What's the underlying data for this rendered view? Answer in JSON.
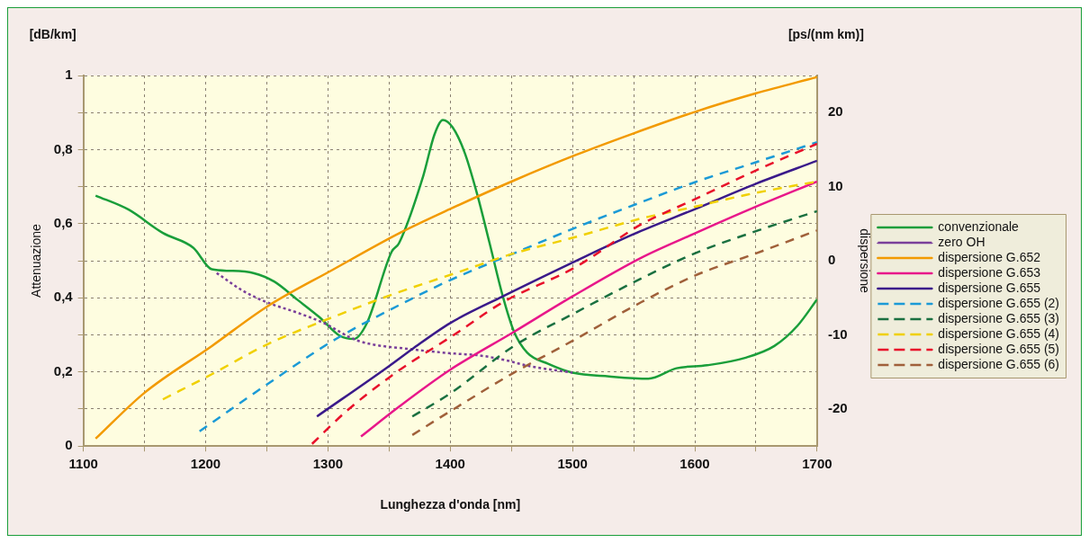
{
  "chart_data": {
    "type": "line",
    "xlabel": "Lunghezza d'onda [nm]",
    "ylabel": "Attenuazione",
    "y2label": "dispersione",
    "annotations": [
      "[dB/km]",
      "[ps/(nm km)]"
    ],
    "xlim": [
      1100,
      1700
    ],
    "xticks": [
      1100,
      {
        "value": 1150,
        "label": null
      },
      1200,
      {
        "value": 1250,
        "label": null
      },
      1300,
      {
        "value": 1350,
        "label": null
      },
      1400,
      {
        "value": 1450,
        "label": null
      },
      1500,
      {
        "value": 1550,
        "label": null
      },
      1600,
      {
        "value": 1650,
        "label": null
      },
      1700
    ],
    "ylim": [
      0,
      1
    ],
    "yticks": [
      0,
      {
        "value": 0.1,
        "label": null
      },
      {
        "value": 0.2,
        "label": "0,2"
      },
      {
        "value": 0.3,
        "label": null
      },
      {
        "value": 0.4,
        "label": "0,4"
      },
      {
        "value": 0.5,
        "label": null
      },
      {
        "value": 0.6,
        "label": "0,6"
      },
      {
        "value": 0.7,
        "label": null
      },
      {
        "value": 0.8,
        "label": "0,8"
      },
      {
        "value": 0.9,
        "label": null
      },
      1
    ],
    "y2lim": [
      -25,
      25
    ],
    "y2ticks": [
      -20,
      -10,
      0,
      10,
      20
    ],
    "grid": true,
    "legend": "right",
    "marker": "none",
    "series": [
      {
        "name": "convenzionale",
        "color": "#1a9e3a",
        "line_style": "solid",
        "x": [
          1110,
          1137,
          1165,
          1190,
          1205,
          1220,
          1239,
          1256,
          1275,
          1293,
          1310,
          1321,
          1332,
          1352,
          1358,
          1378,
          1387,
          1394,
          1402,
          1412,
          1422,
          1432,
          1443,
          1452,
          1463,
          1480,
          1500,
          1530,
          1562,
          1585,
          1610,
          1641,
          1665,
          1684,
          1700
        ],
        "values": [
          0.676,
          0.638,
          0.575,
          0.535,
          0.477,
          0.473,
          0.467,
          0.444,
          0.395,
          0.348,
          0.297,
          0.289,
          0.333,
          0.524,
          0.547,
          0.73,
          0.84,
          0.88,
          0.86,
          0.79,
          0.68,
          0.55,
          0.404,
          0.31,
          0.252,
          0.222,
          0.198,
          0.188,
          0.182,
          0.21,
          0.218,
          0.238,
          0.27,
          0.325,
          0.396
        ]
      },
      {
        "name": "zero OH",
        "color": "#7a3f9a",
        "line_style": "dotted",
        "x": [
          1209,
          1230,
          1250,
          1275,
          1296,
          1324,
          1369,
          1406,
          1423,
          1445,
          1463,
          1500
        ],
        "values": [
          0.467,
          0.42,
          0.388,
          0.36,
          0.333,
          0.285,
          0.261,
          0.249,
          0.245,
          0.232,
          0.217,
          0.198
        ]
      },
      {
        "name": "dispersione G.652",
        "color": "#f29a00",
        "line_style": "solid",
        "axis": "y2",
        "x": [
          1110,
          1150,
          1205,
          1250,
          1304,
          1358,
          1400,
          1453,
          1503,
          1550,
          1602,
          1650,
          1700
        ],
        "values": [
          -24,
          -17.8,
          -11.5,
          -6.2,
          -1.2,
          3.7,
          7,
          10.9,
          14.3,
          17.2,
          20.2,
          22.6,
          24.8
        ]
      },
      {
        "name": "dispersione G.653",
        "color": "#e8178a",
        "line_style": "solid",
        "axis": "y2",
        "x": [
          1327,
          1358,
          1400,
          1452,
          1500,
          1556,
          1600,
          1650,
          1700
        ],
        "values": [
          -23.7,
          -19.7,
          -14.7,
          -9.6,
          -4.8,
          0.4,
          3.7,
          7.3,
          10.7
        ]
      },
      {
        "name": "dispersione G.655",
        "color": "#3a1a8a",
        "line_style": "solid",
        "axis": "y2",
        "x": [
          1291,
          1350,
          1369,
          1400,
          1443,
          1503,
          1550,
          1602,
          1650,
          1700
        ],
        "values": [
          -21,
          -14.2,
          -11.9,
          -8.4,
          -4.8,
          0,
          3.6,
          7.1,
          10.4,
          13.5
        ]
      },
      {
        "name": "dispersione G.655 (2)",
        "color": "#1b9ad6",
        "line_style": "dashed",
        "axis": "y2",
        "x": [
          1195,
          1250,
          1304,
          1358,
          1400,
          1452,
          1500,
          1556,
          1600,
          1650,
          1700
        ],
        "values": [
          -23,
          -16.7,
          -10.8,
          -6,
          -2.6,
          1,
          4.3,
          7.9,
          10.6,
          13.3,
          16
        ]
      },
      {
        "name": "dispersione G.655 (3)",
        "color": "#1a7040",
        "line_style": "dashed",
        "axis": "y2",
        "x": [
          1369,
          1400,
          1452,
          1500,
          1556,
          1600,
          1650,
          1700
        ],
        "values": [
          -21,
          -17.9,
          -11.5,
          -7.2,
          -2.4,
          1,
          4,
          6.7
        ]
      },
      {
        "name": "dispersione G.655 (4)",
        "color": "#f0d000",
        "line_style": "dashed",
        "axis": "y2",
        "x": [
          1165,
          1205,
          1250,
          1304,
          1350,
          1409,
          1450,
          1500,
          1556,
          1600,
          1642,
          1700
        ],
        "values": [
          -18.7,
          -15.3,
          -11.3,
          -7.6,
          -4.7,
          -1.4,
          0.9,
          3.1,
          5.7,
          7.3,
          8.9,
          10.7
        ]
      },
      {
        "name": "dispersione G.655 (5)",
        "color": "#e8102a",
        "line_style": "dashed",
        "axis": "y2",
        "x": [
          1287,
          1315,
          1352,
          1366,
          1403,
          1443,
          1503,
          1556,
          1600,
          1650,
          1700
        ],
        "values": [
          -24.7,
          -20.3,
          -15.5,
          -13.9,
          -10,
          -5.6,
          -0.8,
          4.9,
          8.3,
          12.2,
          15.8
        ]
      },
      {
        "name": "dispersione G.655 (6)",
        "color": "#a0603a",
        "line_style": "dashed",
        "axis": "y2",
        "x": [
          1369,
          1400,
          1452,
          1500,
          1556,
          1600,
          1650,
          1700
        ],
        "values": [
          -23.5,
          -20.3,
          -15.1,
          -10.8,
          -5.6,
          -2,
          1,
          4.1
        ]
      }
    ]
  }
}
